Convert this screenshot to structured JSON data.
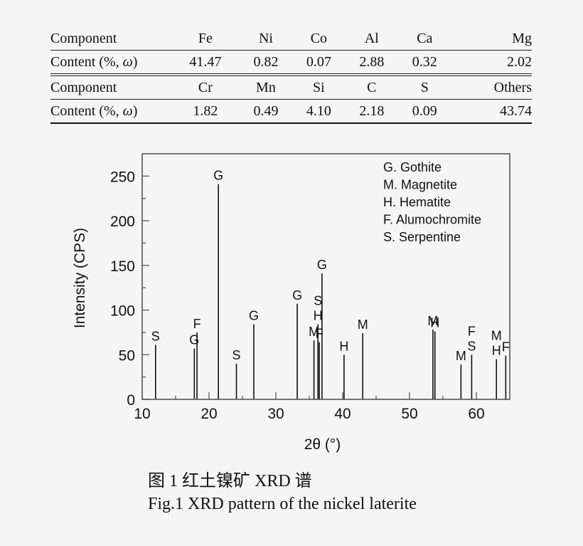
{
  "table": {
    "rows": [
      {
        "label": "Component",
        "cells": [
          "Fe",
          "Ni",
          "Co",
          "Al",
          "Ca",
          "Mg"
        ]
      },
      {
        "label_prefix": "Content (%, ",
        "label_var": "ω",
        "label_suffix": ")",
        "cells": [
          "41.47",
          "0.82",
          "0.07",
          "2.88",
          "0.32",
          "2.02"
        ]
      },
      {
        "label": "Component",
        "cells": [
          "Cr",
          "Mn",
          "Si",
          "C",
          "S",
          "Others"
        ]
      },
      {
        "label_prefix": "Content (%, ",
        "label_var": "ω",
        "label_suffix": ")",
        "cells": [
          "1.82",
          "0.49",
          "4.10",
          "2.18",
          "0.09",
          "43.74"
        ]
      }
    ]
  },
  "chart_data": {
    "type": "bar",
    "subtype": "stick-pattern",
    "title": "",
    "xlabel": "2θ (°)",
    "ylabel": "Intensity (CPS)",
    "xlim": [
      10,
      65
    ],
    "ylim": [
      0,
      275
    ],
    "xticks": [
      10,
      20,
      30,
      40,
      50,
      60
    ],
    "yticks": [
      0,
      50,
      100,
      150,
      200,
      250
    ],
    "grid": false,
    "legend_position": "upper right (inside)",
    "legend": [
      "G. Gothite",
      "M. Magnetite",
      "H. Hematite",
      "F. Alumochromite",
      "S. Serpentine"
    ],
    "peaks": [
      {
        "x": 12.0,
        "y": 61,
        "label": "S"
      },
      {
        "x": 17.8,
        "y": 57,
        "label": "G"
      },
      {
        "x": 18.2,
        "y": 75,
        "label": "F"
      },
      {
        "x": 21.4,
        "y": 241,
        "label": "G"
      },
      {
        "x": 24.1,
        "y": 40,
        "label": "S"
      },
      {
        "x": 26.7,
        "y": 84,
        "label": "G"
      },
      {
        "x": 33.2,
        "y": 107,
        "label": "G"
      },
      {
        "x": 35.7,
        "y": 66,
        "label": "M"
      },
      {
        "x": 36.3,
        "y": 84,
        "label": "S H"
      },
      {
        "x": 36.5,
        "y": 64,
        "label": "F"
      },
      {
        "x": 36.9,
        "y": 141,
        "label": "G"
      },
      {
        "x": 40.2,
        "y": 50,
        "label": "H"
      },
      {
        "x": 43.0,
        "y": 74,
        "label": "M"
      },
      {
        "x": 53.5,
        "y": 78,
        "label": "M"
      },
      {
        "x": 53.8,
        "y": 76,
        "label": "H"
      },
      {
        "x": 57.7,
        "y": 39,
        "label": "M"
      },
      {
        "x": 59.3,
        "y": 50,
        "label": "F S"
      },
      {
        "x": 63.0,
        "y": 45,
        "label": "M H"
      },
      {
        "x": 64.4,
        "y": 49,
        "label": "F"
      }
    ]
  },
  "caption": {
    "cn": "图 1  红土镍矿 XRD 谱",
    "en": "Fig.1 XRD pattern of the nickel laterite"
  }
}
